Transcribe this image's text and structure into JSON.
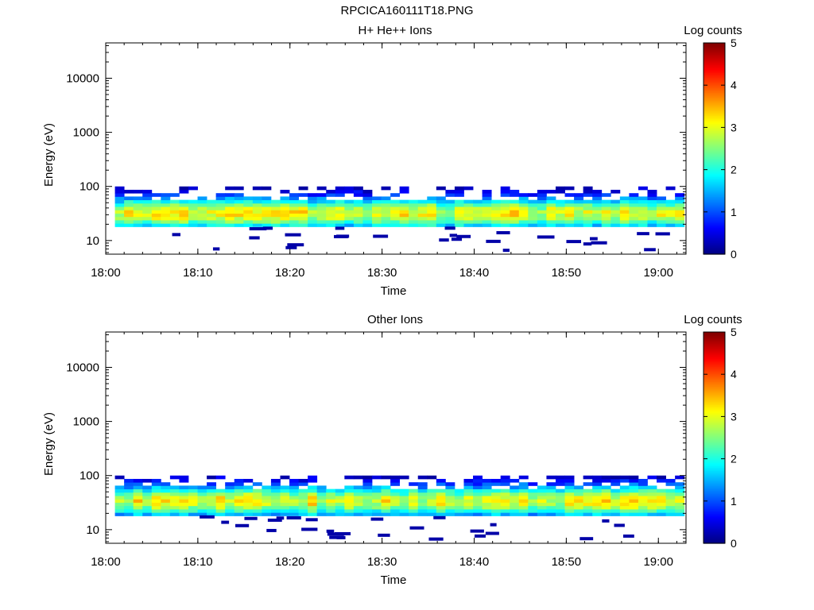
{
  "page_title": "RPCICA160111T18.PNG",
  "chart_data": [
    {
      "type": "heatmap",
      "title": "H+ He++ Ions",
      "xlabel": "Time",
      "ylabel": "Energy (eV)",
      "x_tick_labels": [
        "18:00",
        "18:10",
        "18:20",
        "18:30",
        "18:40",
        "18:50",
        "19:00"
      ],
      "x_range": [
        "18:00",
        "19:03"
      ],
      "y_scale": "log",
      "y_tick_labels": [
        "10",
        "100",
        "1000",
        "10000"
      ],
      "y_range": [
        5.6,
        45000
      ],
      "colorbar": {
        "label": "Log counts",
        "range": [
          0,
          5
        ],
        "tick_labels": [
          "0",
          "1",
          "2",
          "3",
          "4",
          "5"
        ],
        "colormap": "jet"
      },
      "energy_band_eV": [
        18,
        100
      ],
      "peak_energy_eV": 32,
      "seed": 7
    },
    {
      "type": "heatmap",
      "title": "Other Ions",
      "xlabel": "Time",
      "ylabel": "Energy (eV)",
      "x_tick_labels": [
        "18:00",
        "18:10",
        "18:20",
        "18:30",
        "18:40",
        "18:50",
        "19:00"
      ],
      "x_range": [
        "18:00",
        "19:03"
      ],
      "y_scale": "log",
      "y_tick_labels": [
        "10",
        "100",
        "1000",
        "10000"
      ],
      "y_range": [
        5.6,
        45000
      ],
      "colorbar": {
        "label": "Log counts",
        "range": [
          0,
          5
        ],
        "tick_labels": [
          "0",
          "1",
          "2",
          "3",
          "4",
          "5"
        ],
        "colormap": "jet"
      },
      "energy_band_eV": [
        18,
        100
      ],
      "peak_energy_eV": 34,
      "seed": 19
    }
  ]
}
